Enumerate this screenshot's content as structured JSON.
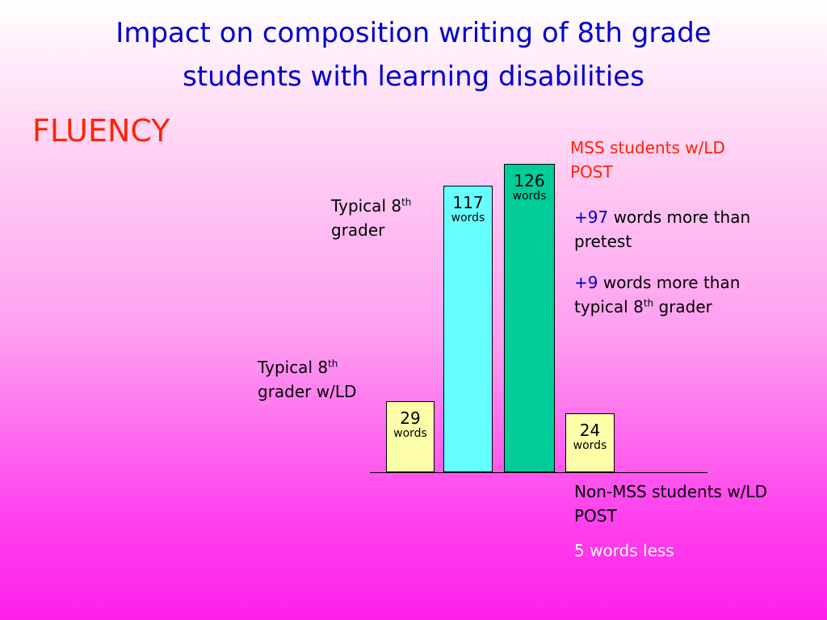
{
  "title_line1": "Impact on composition writing  of 8th grade",
  "title_line2": "students with learning disabilities",
  "section": "FLUENCY",
  "labels": {
    "typical_prefix": "Typical 8",
    "th": "th",
    "grader": "grader",
    "grader_ld": "grader w/LD",
    "mss_line1": "MSS students w/LD",
    "mss_line2": "POST",
    "nonmss_line1": "Non-MSS students w/LD",
    "nonmss_line2": "POST"
  },
  "notes": {
    "n1_val": "+97",
    "n1_text": " words more than",
    "n1_line2": "pretest",
    "n2_val": "+9",
    "n2_text": " words more than",
    "n2_line2_prefix": "typical 8",
    "n2_line2_suffix": " grader",
    "less": "5 words less"
  },
  "colors": {
    "typical_ld": "#ffffaa",
    "typical": "#66ffff",
    "mss": "#00cc99",
    "nonmss": "#ffffaa"
  },
  "chart_data": {
    "type": "bar",
    "categories": [
      "Typical 8th grader w/LD",
      "Typical 8th grader",
      "MSS students w/LD POST",
      "Non-MSS students w/LD POST"
    ],
    "values": [
      29,
      117,
      126,
      24
    ],
    "value_labels": [
      "29",
      "117",
      "126",
      "24"
    ],
    "unit": "words"
  }
}
